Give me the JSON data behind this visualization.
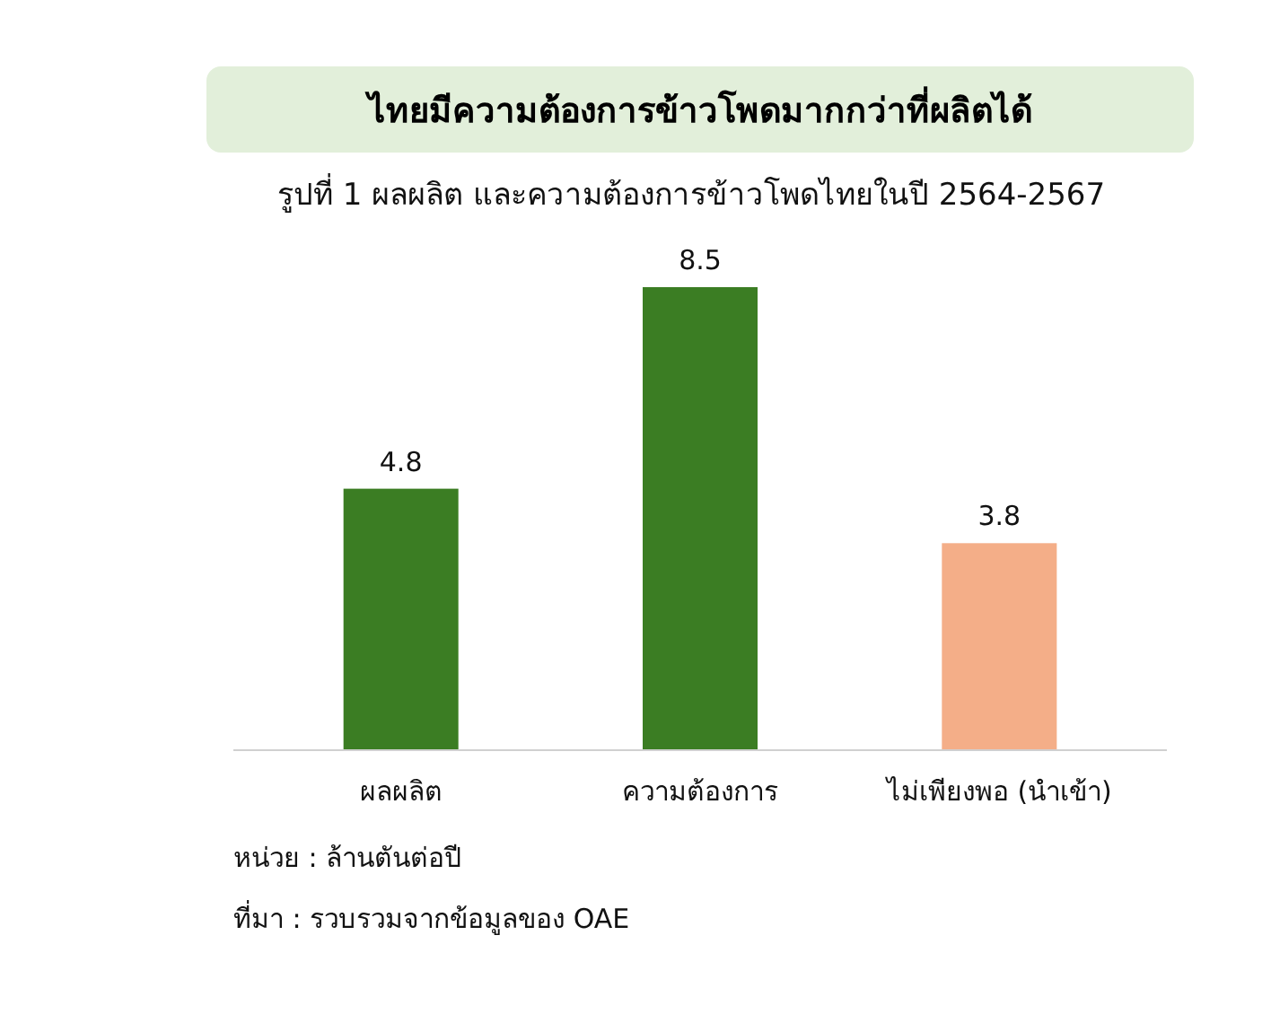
{
  "chart_data": {
    "type": "bar",
    "title": "ไทยมีความต้องการข้าวโพดมากกว่าที่ผลิตได้",
    "subtitle": "รูปที่ 1 ผลผลิต และความต้องการข้าวโพดไทยในปี 2564-2567",
    "categories": [
      "ผลผลิต",
      "ความต้องการ",
      "ไม่เพียงพอ (นำเข้า)"
    ],
    "values": [
      4.8,
      8.5,
      3.8
    ],
    "colors": [
      "#3b7d23",
      "#3b7d23",
      "#f4ae88"
    ],
    "data_labels": true,
    "annotations": [
      "หน่วย : ล้านตันต่อปี",
      "ที่มา : รวบรวมจากข้อมูลของ OAE"
    ]
  }
}
